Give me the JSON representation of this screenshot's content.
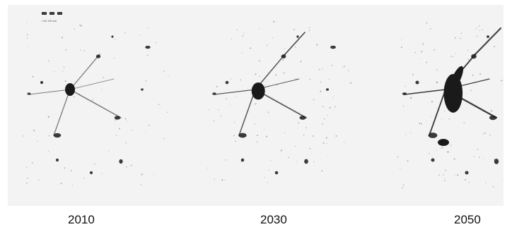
{
  "scale": {
    "label": "▪ 50 100 km"
  },
  "panels": [
    {
      "year": "2010",
      "growth": "low"
    },
    {
      "year": "2030",
      "growth": "medium"
    },
    {
      "year": "2050",
      "growth": "high"
    }
  ],
  "colors": {
    "background": "#f3f3f3",
    "urban": "#1a1a1a",
    "sparse": "#8a8a8a"
  }
}
